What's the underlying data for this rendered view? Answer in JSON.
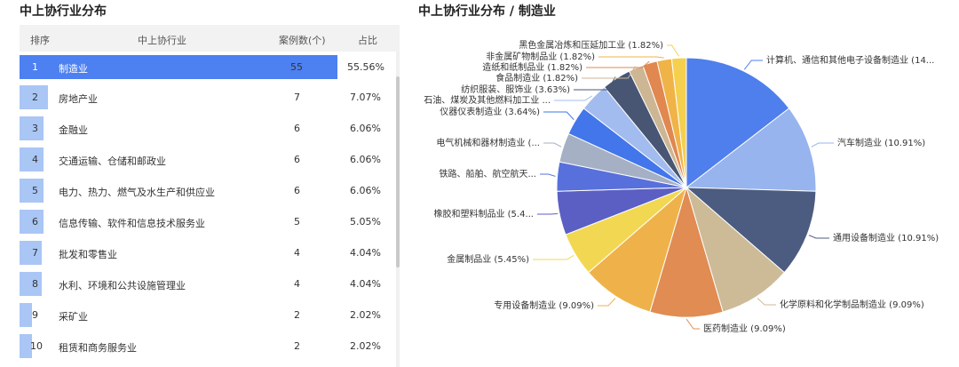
{
  "left_panel": {
    "title": "中上协行业分布",
    "headers": {
      "rank": "排序",
      "industry": "中上协行业",
      "count": "案例数(个)",
      "ratio": "占比"
    },
    "rows": [
      {
        "rank": "1",
        "industry": "制造业",
        "count": "55",
        "ratio": "55.56%"
      },
      {
        "rank": "2",
        "industry": "房地产业",
        "count": "7",
        "ratio": "7.07%"
      },
      {
        "rank": "3",
        "industry": "金融业",
        "count": "6",
        "ratio": "6.06%"
      },
      {
        "rank": "4",
        "industry": "交通运输、仓储和邮政业",
        "count": "6",
        "ratio": "6.06%"
      },
      {
        "rank": "5",
        "industry": "电力、热力、燃气及水生产和供应业",
        "count": "6",
        "ratio": "6.06%"
      },
      {
        "rank": "6",
        "industry": "信息传输、软件和信息技术服务业",
        "count": "5",
        "ratio": "5.05%"
      },
      {
        "rank": "7",
        "industry": "批发和零售业",
        "count": "4",
        "ratio": "4.04%"
      },
      {
        "rank": "8",
        "industry": "水利、环境和公共设施管理业",
        "count": "4",
        "ratio": "4.04%"
      },
      {
        "rank": "9",
        "industry": "采矿业",
        "count": "2",
        "ratio": "2.02%"
      },
      {
        "rank": "10",
        "industry": "租赁和商务服务业",
        "count": "2",
        "ratio": "2.02%"
      }
    ]
  },
  "chart_data": {
    "type": "pie",
    "title": "中上协行业分布 / 制造业",
    "slices": [
      {
        "label": "计算机、通信和其他电子设备制造业 (14...",
        "value": 14.55,
        "color": "#4e7fec"
      },
      {
        "label": "汽车制造业 (10.91%)",
        "value": 10.91,
        "color": "#97b4ee"
      },
      {
        "label": "通用设备制造业 (10.91%)",
        "value": 10.91,
        "color": "#4c5c80"
      },
      {
        "label": "化学原料和化学制品制造业 (9.09%)",
        "value": 9.09,
        "color": "#cdbb98"
      },
      {
        "label": "医药制造业 (9.09%)",
        "value": 9.09,
        "color": "#e08c52"
      },
      {
        "label": "专用设备制造业 (9.09%)",
        "value": 9.09,
        "color": "#efb24a"
      },
      {
        "label": "金属制品业 (5.45%)",
        "value": 5.45,
        "color": "#f2d852"
      },
      {
        "label": "橡胶和塑料制品业 (5.4...",
        "value": 5.45,
        "color": "#5b5fc4"
      },
      {
        "label": "铁路、船舶、航空航天...",
        "value": 3.64,
        "color": "#5870dc"
      },
      {
        "label": "电气机械和器材制造业 (...",
        "value": 3.64,
        "color": "#a5b0c5"
      },
      {
        "label": "仪器仪表制造业 (3.64%)",
        "value": 3.64,
        "color": "#4276ea"
      },
      {
        "label": "石油、煤炭及其他燃料加工业 ...",
        "value": 3.64,
        "color": "#a3bcef"
      },
      {
        "label": "纺织服装、服饰业 (3.63%)",
        "value": 3.63,
        "color": "#485674"
      },
      {
        "label": "食品制造业 (1.82%)",
        "value": 1.82,
        "color": "#cdb694"
      },
      {
        "label": "造纸和纸制品业 (1.82%)",
        "value": 1.82,
        "color": "#e0884f"
      },
      {
        "label": "非金属矿物制品业 (1.82%)",
        "value": 1.82,
        "color": "#f0b348"
      },
      {
        "label": "黑色金属冶炼和压延加工业 (1.82%)",
        "value": 1.82,
        "color": "#f5d04e"
      }
    ]
  }
}
